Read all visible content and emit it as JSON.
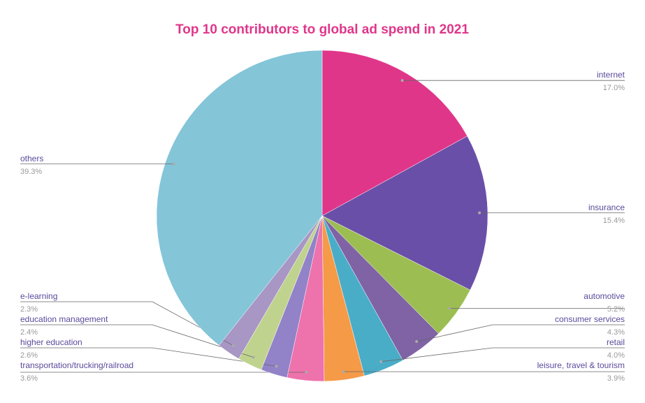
{
  "chart_data": {
    "type": "pie",
    "title": "Top 10 contributors to global ad spend in 2021",
    "categories": [
      "internet",
      "insurance",
      "automotive",
      "consumer services",
      "retail",
      "leisure, travel & tourism",
      "transportation/trucking/railroad",
      "higher education",
      "education management",
      "e-learning",
      "others"
    ],
    "values": [
      17.0,
      15.4,
      5.2,
      4.3,
      4.0,
      3.9,
      3.6,
      2.6,
      2.4,
      2.3,
      39.3
    ],
    "value_labels": [
      "17.0%",
      "15.4%",
      "5.2%",
      "4.3%",
      "4.0%",
      "3.9%",
      "3.6%",
      "2.6%",
      "2.4%",
      "2.3%",
      "39.3%"
    ],
    "colors": [
      "#e0368a",
      "#6a4fa8",
      "#9cbd52",
      "#7f63a4",
      "#49adc8",
      "#f59a47",
      "#ee72ac",
      "#9282c8",
      "#bfd38e",
      "#a896c4",
      "#84c5d8"
    ]
  }
}
